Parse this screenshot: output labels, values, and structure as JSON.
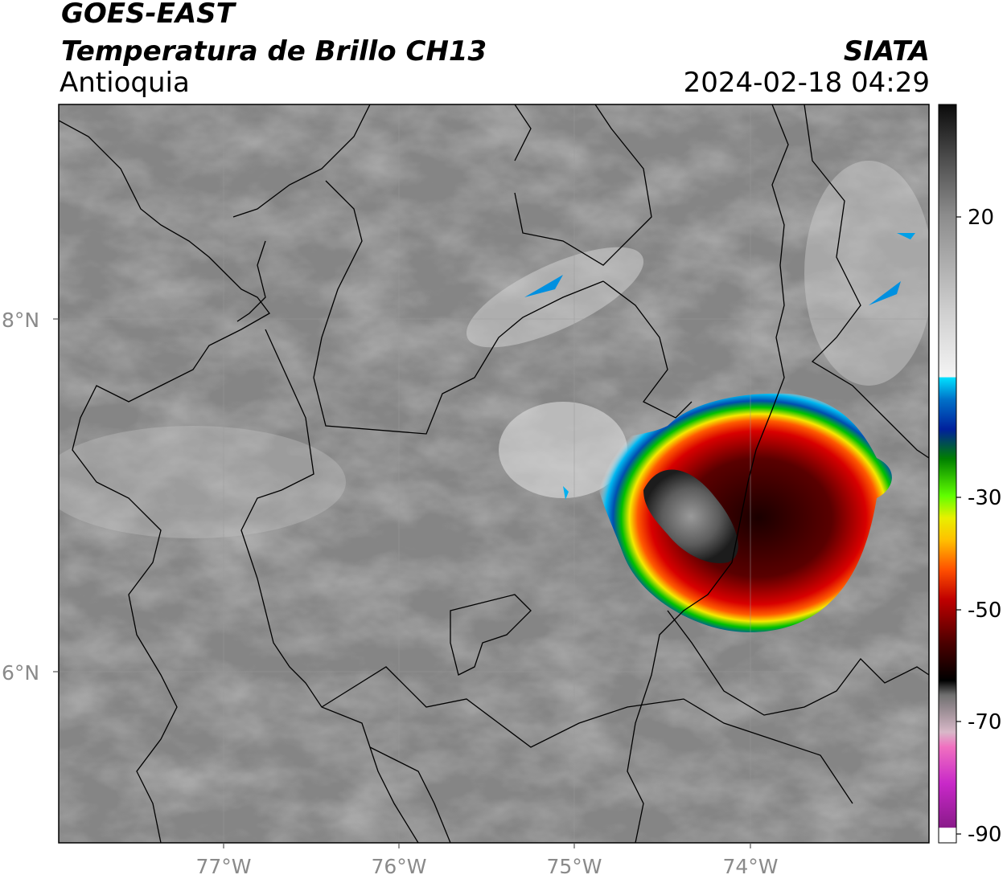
{
  "header": {
    "satellite": "GOES-EAST",
    "product": "Temperatura de Brillo CH13",
    "region": "Antioquia",
    "agency": "SIATA",
    "timestamp": "2024-02-18 04:29"
  },
  "axes": {
    "latitude_labels": [
      "8°N",
      "6°N"
    ],
    "longitude_labels": [
      "77°W",
      "76°W",
      "75°W",
      "74°W"
    ]
  },
  "colorbar": {
    "tick_labels": [
      "20",
      "-30",
      "-50",
      "-70",
      "-90"
    ],
    "tick_values": [
      20,
      -30,
      -50,
      -70,
      -90
    ],
    "range": [
      -92,
      34
    ]
  },
  "colors": {
    "frame": "#000000",
    "background_gray": "#8c8c8c",
    "cold_core_dark": "#1a0000",
    "red": "#e00000",
    "yellow": "#f2f200",
    "green": "#00c000",
    "blue": "#003c9c",
    "cyan": "#00d0ff",
    "magenta": "#c020c0"
  }
}
